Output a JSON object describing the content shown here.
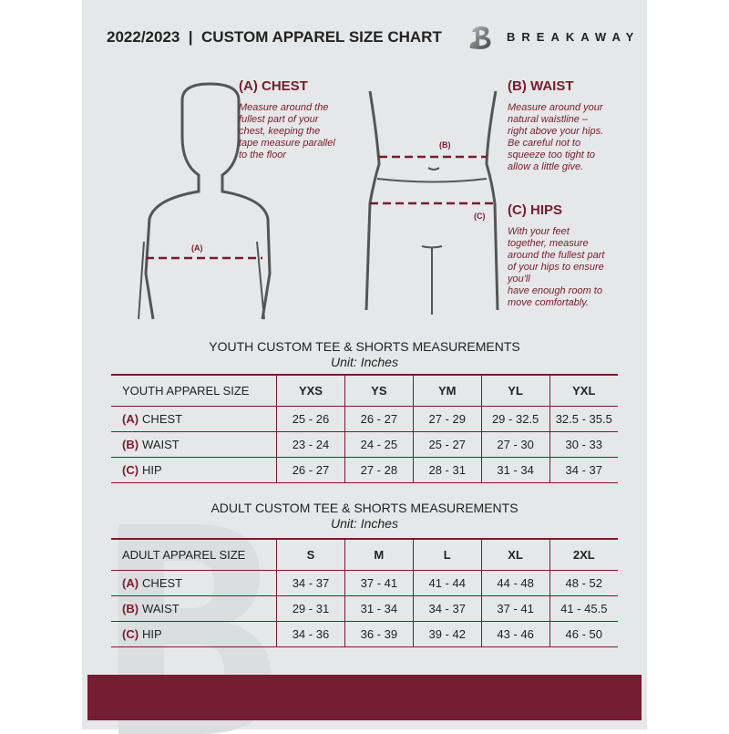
{
  "header": {
    "title": "2022/2023  |  CUSTOM APPAREL SIZE CHART",
    "brand": "BREAKAWAY",
    "logo_letter": "B"
  },
  "guide": {
    "chest": {
      "heading": "(A) CHEST",
      "text": "Measure around the\nfullest part of your\nchest, keeping the\ntape measure parallel\nto the floor",
      "marker": "(A)"
    },
    "waist": {
      "heading": "(B) WAIST",
      "text": "Measure around your\nnatural waistline –\nright above your hips.\nBe careful not to\nsqueeze too tight to\nallow a little give.",
      "marker": "(B)"
    },
    "hips": {
      "heading": "(C) HIPS",
      "text": "With your feet\ntogether, measure\naround the fullest part\nof your hips to ensure\nyou'll\nhave enough room to\nmove comfortably.",
      "marker": "(C)"
    }
  },
  "youth": {
    "title": "YOUTH CUSTOM TEE & SHORTS MEASUREMENTS",
    "unit": "Unit: Inches",
    "size_label": "YOUTH APPAREL SIZE",
    "sizes": [
      "YXS",
      "YS",
      "YM",
      "YL",
      "YXL"
    ],
    "rows": [
      {
        "code": "(A)",
        "name": "CHEST",
        "values": [
          "25 - 26",
          "26 - 27",
          "27 - 29",
          "29 - 32.5",
          "32.5 - 35.5"
        ]
      },
      {
        "code": "(B)",
        "name": "WAIST",
        "values": [
          "23 - 24",
          "24 - 25",
          "25 - 27",
          "27 - 30",
          "30 - 33"
        ]
      },
      {
        "code": "(C)",
        "name": "HIP",
        "values": [
          "26 - 27",
          "27 - 28",
          "28 - 31",
          "31 - 34",
          "34 - 37"
        ]
      }
    ]
  },
  "adult": {
    "title": "ADULT CUSTOM TEE & SHORTS MEASUREMENTS",
    "unit": "Unit: Inches",
    "size_label": "ADULT APPAREL SIZE",
    "sizes": [
      "S",
      "M",
      "L",
      "XL",
      "2XL"
    ],
    "rows": [
      {
        "code": "(A)",
        "name": "CHEST",
        "values": [
          "34 - 37",
          "37 - 41",
          "41 - 44",
          "44 - 48",
          "48 - 52"
        ]
      },
      {
        "code": "(B)",
        "name": "WAIST",
        "values": [
          "29 - 31",
          "31 - 34",
          "34 - 37",
          "37 - 41",
          "41 - 45.5"
        ]
      },
      {
        "code": "(C)",
        "name": "HIP",
        "values": [
          "34 - 36",
          "36 - 39",
          "39 - 42",
          "43 - 46",
          "46 - 50"
        ]
      }
    ]
  },
  "colors": {
    "accent": "#751d31",
    "background": "#e6e7e8",
    "text": "#222222"
  }
}
